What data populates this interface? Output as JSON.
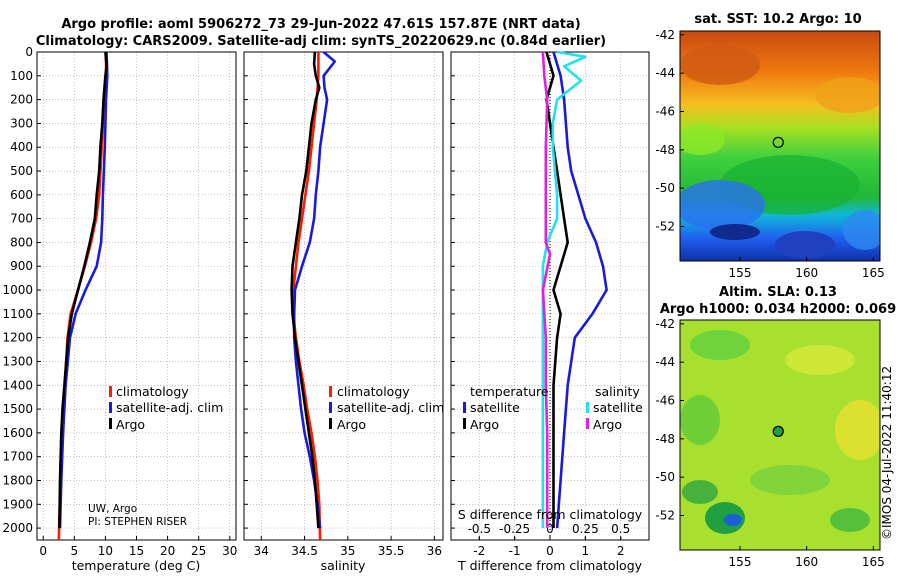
{
  "header": {
    "title_line1": "Argo profile: aoml 5906272_73 29-Jun-2022 47.61S 157.87E (NRT data)",
    "title_line2": "Climatology: CARS2009. Satellite-adj clim: synTS_20220629.nc (0.84d earlier)"
  },
  "credits": {
    "line1": "UW, Argo",
    "line2": "PI: STEPHEN RISER",
    "stamp": "©IMOS 04-Jul-2022 11:40:12"
  },
  "colors": {
    "climatology": "#ff1a00",
    "satellite": "#1a1adb",
    "argo": "#000000",
    "cyan": "#22e0f0",
    "magenta": "#e020e0",
    "grid": "#9a9a9a"
  },
  "chart_data": [
    {
      "type": "line",
      "id": "temperature",
      "xlabel": "temperature (deg C)",
      "ylabel": "",
      "xlim": [
        -1,
        31
      ],
      "ylim": [
        2050,
        0
      ],
      "xticks": [
        0,
        5,
        10,
        15,
        20,
        25,
        30
      ],
      "yticks": [
        0,
        100,
        200,
        300,
        400,
        500,
        600,
        700,
        800,
        900,
        1000,
        1100,
        1200,
        1300,
        1400,
        1500,
        1600,
        1700,
        1800,
        1900,
        2000
      ],
      "legend": [
        "climatology",
        "satellite-adj. clim",
        "Argo"
      ],
      "legend_position": "lower-right",
      "series": [
        {
          "name": "climatology",
          "color": "#ff1a00",
          "points": [
            [
              10.1,
              0
            ],
            [
              10.1,
              100
            ],
            [
              9.8,
              200
            ],
            [
              9.4,
              400
            ],
            [
              9.0,
              600
            ],
            [
              8.5,
              700
            ],
            [
              7.7,
              800
            ],
            [
              6.7,
              900
            ],
            [
              5.6,
              1000
            ],
            [
              4.4,
              1100
            ],
            [
              3.9,
              1200
            ],
            [
              3.5,
              1400
            ],
            [
              3.1,
              1600
            ],
            [
              2.8,
              1800
            ],
            [
              2.6,
              1950
            ],
            [
              2.5,
              2050
            ]
          ]
        },
        {
          "name": "satellite-adj. clim",
          "color": "#1a1adb",
          "points": [
            [
              10.2,
              0
            ],
            [
              10.3,
              100
            ],
            [
              10.1,
              200
            ],
            [
              9.9,
              400
            ],
            [
              9.6,
              600
            ],
            [
              9.5,
              700
            ],
            [
              9.3,
              800
            ],
            [
              8.6,
              900
            ],
            [
              6.8,
              1000
            ],
            [
              5.2,
              1100
            ],
            [
              4.3,
              1200
            ],
            [
              3.6,
              1400
            ],
            [
              3.2,
              1600
            ],
            [
              2.9,
              1800
            ],
            [
              2.7,
              2000
            ]
          ]
        },
        {
          "name": "Argo",
          "color": "#000000",
          "points": [
            [
              10.0,
              0
            ],
            [
              10.2,
              60
            ],
            [
              10.0,
              100
            ],
            [
              9.7,
              200
            ],
            [
              9.5,
              300
            ],
            [
              9.2,
              400
            ],
            [
              9.0,
              500
            ],
            [
              8.6,
              600
            ],
            [
              8.3,
              700
            ],
            [
              7.5,
              800
            ],
            [
              6.6,
              900
            ],
            [
              5.6,
              1000
            ],
            [
              4.6,
              1100
            ],
            [
              4.0,
              1200
            ],
            [
              3.7,
              1300
            ],
            [
              3.4,
              1400
            ],
            [
              3.1,
              1500
            ],
            [
              2.9,
              1600
            ],
            [
              2.7,
              1800
            ],
            [
              2.6,
              2000
            ]
          ]
        }
      ]
    },
    {
      "type": "line",
      "id": "salinity",
      "xlabel": "salinity",
      "xlim": [
        33.8,
        36.1
      ],
      "ylim": [
        2050,
        0
      ],
      "xticks": [
        34,
        34.5,
        35,
        35.5,
        36
      ],
      "xtick_labels": [
        "34",
        "34.5",
        "35",
        "35.5",
        "36"
      ],
      "legend": [
        "climatology",
        "satellite-adj. clim",
        "Argo"
      ],
      "legend_position": "lower-right",
      "series": [
        {
          "name": "climatology",
          "color": "#ff1a00",
          "points": [
            [
              34.66,
              0
            ],
            [
              34.66,
              100
            ],
            [
              34.64,
              200
            ],
            [
              34.61,
              300
            ],
            [
              34.58,
              400
            ],
            [
              34.55,
              500
            ],
            [
              34.51,
              600
            ],
            [
              34.47,
              700
            ],
            [
              34.43,
              800
            ],
            [
              34.4,
              900
            ],
            [
              34.37,
              1000
            ],
            [
              34.37,
              1100
            ],
            [
              34.4,
              1200
            ],
            [
              34.44,
              1300
            ],
            [
              34.49,
              1400
            ],
            [
              34.53,
              1500
            ],
            [
              34.58,
              1600
            ],
            [
              34.62,
              1700
            ],
            [
              34.65,
              1800
            ],
            [
              34.67,
              1900
            ],
            [
              34.68,
              2050
            ]
          ]
        },
        {
          "name": "satellite-adj. clim",
          "color": "#1a1adb",
          "points": [
            [
              34.72,
              0
            ],
            [
              34.85,
              40
            ],
            [
              34.72,
              100
            ],
            [
              34.73,
              150
            ],
            [
              34.76,
              200
            ],
            [
              34.72,
              300
            ],
            [
              34.68,
              400
            ],
            [
              34.66,
              500
            ],
            [
              34.63,
              600
            ],
            [
              34.61,
              700
            ],
            [
              34.56,
              800
            ],
            [
              34.47,
              900
            ],
            [
              34.39,
              1000
            ],
            [
              34.38,
              1100
            ],
            [
              34.38,
              1200
            ],
            [
              34.4,
              1300
            ],
            [
              34.43,
              1400
            ],
            [
              34.46,
              1500
            ],
            [
              34.5,
              1600
            ],
            [
              34.56,
              1700
            ],
            [
              34.61,
              1800
            ],
            [
              34.65,
              1900
            ],
            [
              34.68,
              2000
            ]
          ]
        },
        {
          "name": "Argo",
          "color": "#000000",
          "points": [
            [
              34.62,
              0
            ],
            [
              34.61,
              50
            ],
            [
              34.63,
              100
            ],
            [
              34.67,
              150
            ],
            [
              34.63,
              200
            ],
            [
              34.58,
              300
            ],
            [
              34.55,
              400
            ],
            [
              34.52,
              500
            ],
            [
              34.47,
              600
            ],
            [
              34.44,
              700
            ],
            [
              34.4,
              800
            ],
            [
              34.36,
              900
            ],
            [
              34.35,
              1000
            ],
            [
              34.36,
              1100
            ],
            [
              34.39,
              1200
            ],
            [
              34.43,
              1300
            ],
            [
              34.47,
              1400
            ],
            [
              34.51,
              1500
            ],
            [
              34.55,
              1600
            ],
            [
              34.59,
              1700
            ],
            [
              34.62,
              1800
            ],
            [
              34.64,
              1900
            ],
            [
              34.66,
              2000
            ]
          ]
        }
      ]
    },
    {
      "type": "line",
      "id": "differences",
      "xlabel": "T difference from climatology",
      "top_xlabel": "S difference from climatology",
      "xlim": [
        -2.8,
        2.8
      ],
      "top_xlim": [
        -0.7,
        0.7
      ],
      "ylim": [
        2050,
        0
      ],
      "xticks": [
        -2,
        -1,
        0,
        1,
        2
      ],
      "xtick_labels": [
        "-2",
        "-1",
        "0",
        "1",
        "2"
      ],
      "top_xticks": [
        -0.5,
        -0.25,
        0,
        0.25,
        0.5
      ],
      "top_xtick_labels": [
        "-0.5",
        "-0.25",
        "0",
        "0.25",
        "0.5"
      ],
      "legend_temperature": {
        "title": "temperature",
        "entries": [
          "satellite",
          "Argo"
        ]
      },
      "legend_salinity": {
        "title": "salinity",
        "entries": [
          "satellite",
          "Argo"
        ]
      },
      "series": [
        {
          "name": "temperature satellite",
          "color": "#1a1adb",
          "axis": "T",
          "points": [
            [
              0.1,
              0
            ],
            [
              0.3,
              100
            ],
            [
              0.4,
              200
            ],
            [
              0.5,
              400
            ],
            [
              0.6,
              500
            ],
            [
              0.8,
              600
            ],
            [
              1.0,
              700
            ],
            [
              1.3,
              800
            ],
            [
              1.5,
              900
            ],
            [
              1.6,
              1000
            ],
            [
              1.2,
              1100
            ],
            [
              0.7,
              1200
            ],
            [
              0.5,
              1400
            ],
            [
              0.4,
              1600
            ],
            [
              0.3,
              1800
            ],
            [
              0.2,
              2000
            ]
          ]
        },
        {
          "name": "temperature Argo",
          "color": "#000000",
          "axis": "T",
          "points": [
            [
              -0.1,
              0
            ],
            [
              0.1,
              100
            ],
            [
              -0.1,
              200
            ],
            [
              0.1,
              400
            ],
            [
              0.2,
              500
            ],
            [
              0.3,
              600
            ],
            [
              0.4,
              700
            ],
            [
              0.5,
              800
            ],
            [
              0.3,
              900
            ],
            [
              0.1,
              1000
            ],
            [
              0.3,
              1100
            ],
            [
              0.2,
              1200
            ],
            [
              0.1,
              1400
            ],
            [
              0.1,
              1600
            ],
            [
              0.1,
              1800
            ],
            [
              0.1,
              2000
            ]
          ]
        },
        {
          "name": "salinity satellite",
          "color": "#22e0f0",
          "axis": "S",
          "points": [
            [
              0.05,
              0
            ],
            [
              0.25,
              20
            ],
            [
              0.1,
              60
            ],
            [
              0.22,
              120
            ],
            [
              0.05,
              200
            ],
            [
              0.02,
              300
            ],
            [
              0.02,
              400
            ],
            [
              0.05,
              600
            ],
            [
              0.05,
              700
            ],
            [
              -0.02,
              800
            ],
            [
              -0.05,
              900
            ],
            [
              -0.05,
              1000
            ],
            [
              -0.05,
              1200
            ],
            [
              -0.05,
              1400
            ],
            [
              -0.05,
              1600
            ],
            [
              -0.05,
              1800
            ],
            [
              -0.05,
              2000
            ]
          ]
        },
        {
          "name": "salinity Argo",
          "color": "#e020e0",
          "axis": "S",
          "points": [
            [
              -0.05,
              0
            ],
            [
              -0.04,
              100
            ],
            [
              -0.02,
              200
            ],
            [
              -0.03,
              400
            ],
            [
              -0.03,
              600
            ],
            [
              -0.03,
              800
            ],
            [
              0.0,
              850
            ],
            [
              -0.05,
              1000
            ],
            [
              -0.03,
              1200
            ],
            [
              -0.03,
              1400
            ],
            [
              -0.02,
              1600
            ],
            [
              -0.02,
              1800
            ],
            [
              -0.02,
              2000
            ]
          ]
        }
      ]
    },
    {
      "type": "heatmap",
      "id": "sst_map",
      "title": "sat. SST: 10.2 Argo: 10",
      "xlim": [
        150.5,
        165.5
      ],
      "ylim": [
        -53.8,
        -41.8
      ],
      "xticks": [
        155,
        160,
        165
      ],
      "yticks": [
        -42,
        -44,
        -46,
        -48,
        -50,
        -52
      ],
      "xtick_labels": [
        "155",
        "160",
        "165"
      ],
      "ytick_labels": [
        "-42",
        "-44",
        "-46",
        "-48",
        "-50",
        "-52"
      ],
      "marker": [
        157.87,
        -47.61
      ]
    },
    {
      "type": "heatmap",
      "id": "sla_map",
      "title_line1": "Altim. SLA: 0.13",
      "title_line2": "Argo h1000: 0.034 h2000: 0.069",
      "xlim": [
        150.5,
        165.5
      ],
      "ylim": [
        -53.8,
        -41.8
      ],
      "xticks": [
        155,
        160,
        165
      ],
      "yticks": [
        -42,
        -44,
        -46,
        -48,
        -50,
        -52
      ],
      "xtick_labels": [
        "155",
        "160",
        "165"
      ],
      "ytick_labels": [
        "-42",
        "-44",
        "-46",
        "-48",
        "-50",
        "-52"
      ],
      "marker": [
        157.87,
        -47.61
      ]
    }
  ]
}
